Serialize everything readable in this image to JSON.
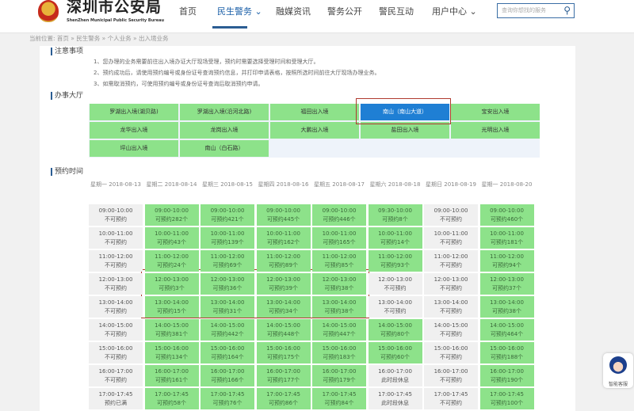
{
  "header": {
    "logo_title": "深圳市公安局",
    "logo_subtitle": "ShenZhen Municipal Public Security Bureau",
    "nav": [
      {
        "label": "首页"
      },
      {
        "label": "民生警务 ⌄",
        "active": true
      },
      {
        "label": "融媒资讯"
      },
      {
        "label": "警务公开"
      },
      {
        "label": "警民互动"
      },
      {
        "label": "用户中心 ⌄"
      }
    ],
    "search_placeholder": "查询你想找的服务",
    "search_icon": "search-icon"
  },
  "breadcrumb": "当前位置:  首页 » 民生警务 » 个人业务 » 出入境业务",
  "notice": {
    "title": "注意事项",
    "items": [
      "1、您办理的业务需要前往出入境办证大厅现场受理，预约时需要选择受理时间和受理大厅。",
      "2、预约成功后，请使用预约编号或身份证号查询预约信息，并打印申请表格，按照所选时间前往大厅现场办理业务。",
      "3、如需取消预约，可使用预约编号或身份证号查询后取消预约申请。"
    ]
  },
  "halls": {
    "title": "办事大厅",
    "selected": "南山（南山大道）",
    "items": [
      "罗湖出入境(湖贝路)",
      "罗湖出入境(沿河北路)",
      "福田出入境",
      "南山（南山大道）",
      "宝安出入境",
      "龙华出入境",
      "龙岗出入境",
      "大鹏出入境",
      "盐田出入境",
      "光明出入境",
      "坪山出入境",
      "南山（白石路）"
    ]
  },
  "schedule": {
    "title": "预约时间",
    "days": [
      {
        "label": "星期一 2018-08-13",
        "slots": [
          [
            "09:00-10:00",
            "不可预约"
          ],
          [
            "10:00-11:00",
            "不可预约"
          ],
          [
            "11:00-12:00",
            "不可预约"
          ],
          [
            "12:00-13:00",
            "不可预约"
          ],
          [
            "13:00-14:00",
            "不可预约"
          ],
          [
            "14:00-15:00",
            "不可预约"
          ],
          [
            "15:00-16:00",
            "不可预约"
          ],
          [
            "16:00-17:00",
            "不可预约"
          ],
          [
            "17:00-17:45",
            "预约已满"
          ]
        ]
      },
      {
        "label": "星期二 2018-08-14",
        "slots": [
          [
            "09:00-10:00",
            "可预约282个"
          ],
          [
            "10:00-11:00",
            "可预约43个"
          ],
          [
            "11:00-12:00",
            "可预约24个"
          ],
          [
            "12:00-13:00",
            "可预约3个"
          ],
          [
            "13:00-14:00",
            "可预约15个"
          ],
          [
            "14:00-15:00",
            "可预约381个"
          ],
          [
            "15:00-16:00",
            "可预约134个"
          ],
          [
            "16:00-17:00",
            "可预约161个"
          ],
          [
            "17:00-17:45",
            "可预约58个"
          ]
        ]
      },
      {
        "label": "星期三 2018-08-15",
        "slots": [
          [
            "09:00-10:00",
            "可预约421个"
          ],
          [
            "10:00-11:00",
            "可预约139个"
          ],
          [
            "11:00-12:00",
            "可预约69个"
          ],
          [
            "12:00-13:00",
            "可预约36个"
          ],
          [
            "13:00-14:00",
            "可预约31个"
          ],
          [
            "14:00-15:00",
            "可预约442个"
          ],
          [
            "15:00-16:00",
            "可预约164个"
          ],
          [
            "16:00-17:00",
            "可预约166个"
          ],
          [
            "17:00-17:45",
            "可预约76个"
          ]
        ]
      },
      {
        "label": "星期四 2018-08-16",
        "slots": [
          [
            "09:00-10:00",
            "可预约445个"
          ],
          [
            "10:00-11:00",
            "可预约162个"
          ],
          [
            "11:00-12:00",
            "可预约89个"
          ],
          [
            "12:00-13:00",
            "可预约39个"
          ],
          [
            "13:00-14:00",
            "可预约34个"
          ],
          [
            "14:00-15:00",
            "可预约448个"
          ],
          [
            "15:00-16:00",
            "可预约175个"
          ],
          [
            "16:00-17:00",
            "可预约177个"
          ],
          [
            "17:00-17:45",
            "可预约86个"
          ]
        ]
      },
      {
        "label": "星期五 2018-08-17",
        "slots": [
          [
            "09:00-10:00",
            "可预约446个"
          ],
          [
            "10:00-11:00",
            "可预约165个"
          ],
          [
            "11:00-12:00",
            "可预约85个"
          ],
          [
            "12:00-13:00",
            "可预约38个"
          ],
          [
            "13:00-14:00",
            "可预约38个"
          ],
          [
            "14:00-15:00",
            "可预约447个"
          ],
          [
            "15:00-16:00",
            "可预约183个"
          ],
          [
            "16:00-17:00",
            "可预约179个"
          ],
          [
            "17:00-17:45",
            "可预约84个"
          ]
        ]
      },
      {
        "label": "星期六 2018-08-18",
        "slots": [
          [
            "09:30-10:00",
            "可预约8个"
          ],
          [
            "10:00-11:00",
            "可预约14个"
          ],
          [
            "11:00-12:00",
            "可预约93个"
          ],
          [
            "12:00-13:00",
            "不可预约"
          ],
          [
            "13:00-14:00",
            "不可预约"
          ],
          [
            "14:00-15:00",
            "可预约80个"
          ],
          [
            "15:00-16:00",
            "可预约60个"
          ],
          [
            "16:00-17:00",
            "此时段休息"
          ],
          [
            "17:00-17:45",
            "此时段休息"
          ]
        ]
      },
      {
        "label": "星期日 2018-08-19",
        "slots": [
          [
            "09:00-10:00",
            "不可预约"
          ],
          [
            "10:00-11:00",
            "不可预约"
          ],
          [
            "11:00-12:00",
            "不可预约"
          ],
          [
            "12:00-13:00",
            "不可预约"
          ],
          [
            "13:00-14:00",
            "不可预约"
          ],
          [
            "14:00-15:00",
            "不可预约"
          ],
          [
            "15:00-16:00",
            "不可预约"
          ],
          [
            "16:00-17:00",
            "不可预约"
          ],
          [
            "17:00-17:45",
            "不可预约"
          ]
        ]
      },
      {
        "label": "星期一 2018-08-20",
        "slots": [
          [
            "09:00-10:00",
            "可预约460个"
          ],
          [
            "10:00-11:00",
            "可预约181个"
          ],
          [
            "11:00-12:00",
            "可预约94个"
          ],
          [
            "12:00-13:00",
            "可预约37个"
          ],
          [
            "13:00-14:00",
            "可预约38个"
          ],
          [
            "14:00-15:00",
            "可预约464个"
          ],
          [
            "15:00-16:00",
            "可预约188个"
          ],
          [
            "16:00-17:00",
            "可预约190个"
          ],
          [
            "17:00-17:45",
            "可预约100个"
          ]
        ]
      }
    ]
  },
  "colors": {
    "available": "#8de28a",
    "unavailable": "#f0f0f0",
    "selected_hall": "#1f7fd4",
    "highlight": "#b03a2e"
  },
  "assistant": {
    "label": "智能客服"
  }
}
